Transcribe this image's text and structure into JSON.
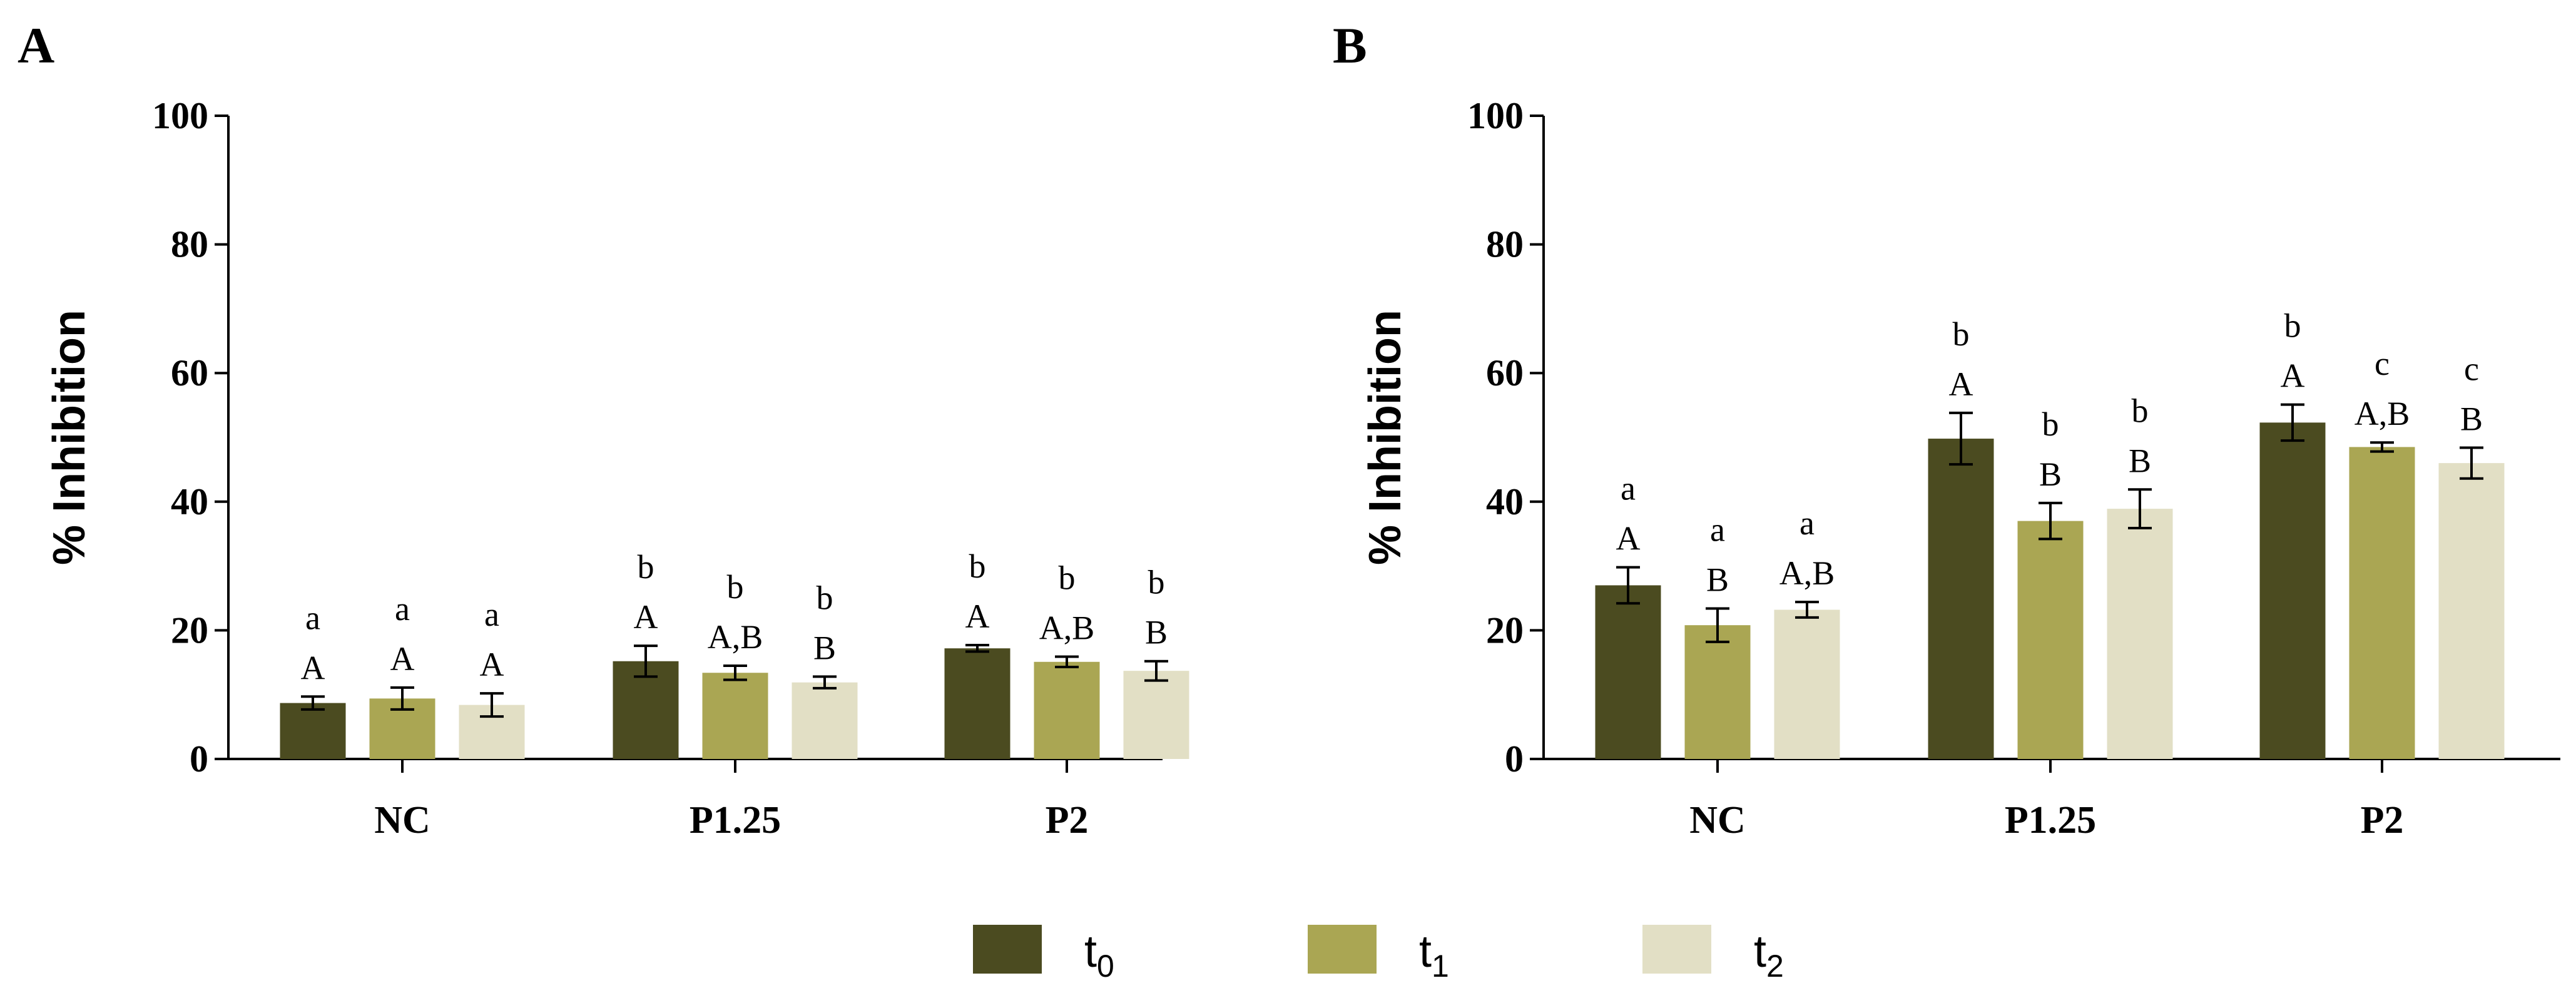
{
  "legend": {
    "entries": [
      {
        "name": "t",
        "sub": "0",
        "color": "#4b4b20"
      },
      {
        "name": "t",
        "sub": "1",
        "color": "#aaa653"
      },
      {
        "name": "t",
        "sub": "2",
        "color": "#e2dfc5"
      }
    ]
  },
  "chart_data": [
    {
      "panel": "A",
      "type": "bar",
      "ylabel": "% Inhibition",
      "xlabel": "",
      "ylim": [
        0,
        100
      ],
      "yticks": [
        "0",
        "20",
        "40",
        "60",
        "80",
        "100"
      ],
      "categories": [
        "NC",
        "P1.25",
        "P2"
      ],
      "series": [
        {
          "name": "t0",
          "values": [
            8.7,
            15.2,
            17.2
          ],
          "errors": [
            1.0,
            2.4,
            0.5
          ],
          "upper_letters": [
            "a",
            "b",
            "b"
          ],
          "lower_letters": [
            "A",
            "A",
            "A"
          ]
        },
        {
          "name": "t1",
          "values": [
            9.4,
            13.4,
            15.1
          ],
          "errors": [
            1.7,
            1.1,
            0.8
          ],
          "upper_letters": [
            "a",
            "b",
            "b"
          ],
          "lower_letters": [
            "A",
            "A,B",
            "A,B"
          ]
        },
        {
          "name": "t2",
          "values": [
            8.4,
            11.9,
            13.7
          ],
          "errors": [
            1.8,
            0.9,
            1.5
          ],
          "upper_letters": [
            "a",
            "b",
            "b"
          ],
          "lower_letters": [
            "A",
            "B",
            "B"
          ]
        }
      ]
    },
    {
      "panel": "B",
      "type": "bar",
      "ylabel": "% Inhibition",
      "xlabel": "",
      "ylim": [
        0,
        100
      ],
      "yticks": [
        "0",
        "20",
        "40",
        "60",
        "80",
        "100"
      ],
      "categories": [
        "NC",
        "P1.25",
        "P2"
      ],
      "series": [
        {
          "name": "t0",
          "values": [
            27.0,
            49.8,
            52.3
          ],
          "errors": [
            2.8,
            4.0,
            2.8
          ],
          "upper_letters": [
            "a",
            "b",
            "b"
          ],
          "lower_letters": [
            "A",
            "A",
            "A"
          ]
        },
        {
          "name": "t1",
          "values": [
            20.8,
            37.0,
            48.5
          ],
          "errors": [
            2.6,
            2.8,
            0.7
          ],
          "upper_letters": [
            "a",
            "b",
            "c"
          ],
          "lower_letters": [
            "B",
            "B",
            "A,B"
          ]
        },
        {
          "name": "t2",
          "values": [
            23.2,
            38.9,
            46.0
          ],
          "errors": [
            1.2,
            3.0,
            2.4
          ],
          "upper_letters": [
            "a",
            "b",
            "c"
          ],
          "lower_letters": [
            "A,B",
            "B",
            "B"
          ]
        }
      ]
    }
  ]
}
